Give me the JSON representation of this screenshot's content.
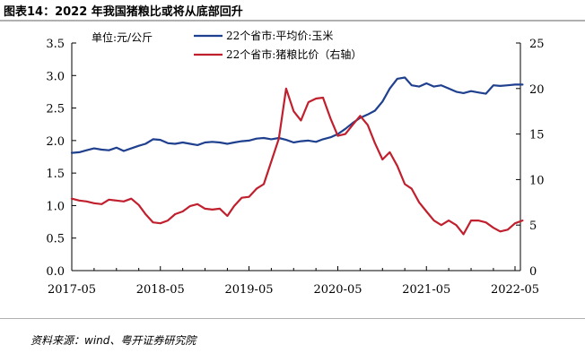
{
  "figure_title": "图表14：2022 年我国猪粮比或将从底部回升",
  "source": "资料来源：wind、粤开证券研究院",
  "chart_data": {
    "type": "line",
    "title": "",
    "unit_label": "单位:元/公斤",
    "x_ticks": [
      "2017-05",
      "2018-05",
      "2019-05",
      "2020-05",
      "2021-05",
      "2022-05"
    ],
    "ylim_left": [
      0,
      3.5
    ],
    "yticks_left": [
      "0.0",
      "0.5",
      "1.0",
      "1.5",
      "2.0",
      "2.5",
      "3.0",
      "3.5"
    ],
    "ylim_right": [
      0,
      25
    ],
    "yticks_right": [
      "0",
      "5",
      "10",
      "15",
      "20",
      "25"
    ],
    "legend_position": "top-center",
    "grid": false,
    "series": [
      {
        "name": "22个省市:平均价:玉米",
        "axis": "left",
        "color": "#1f3f8f",
        "points": [
          [
            "2017-05-01",
            1.81
          ],
          [
            "2017-06-01",
            1.82
          ],
          [
            "2017-07-01",
            1.85
          ],
          [
            "2017-08-01",
            1.88
          ],
          [
            "2017-09-01",
            1.86
          ],
          [
            "2017-10-01",
            1.85
          ],
          [
            "2017-11-01",
            1.89
          ],
          [
            "2017-12-01",
            1.84
          ],
          [
            "2018-01-01",
            1.88
          ],
          [
            "2018-02-01",
            1.92
          ],
          [
            "2018-03-01",
            1.95
          ],
          [
            "2018-04-01",
            2.02
          ],
          [
            "2018-05-01",
            2.01
          ],
          [
            "2018-06-01",
            1.96
          ],
          [
            "2018-07-01",
            1.95
          ],
          [
            "2018-08-01",
            1.97
          ],
          [
            "2018-09-01",
            1.95
          ],
          [
            "2018-10-01",
            1.93
          ],
          [
            "2018-11-01",
            1.97
          ],
          [
            "2018-12-01",
            1.98
          ],
          [
            "2019-01-01",
            1.97
          ],
          [
            "2019-02-01",
            1.95
          ],
          [
            "2019-03-01",
            1.97
          ],
          [
            "2019-04-01",
            1.99
          ],
          [
            "2019-05-01",
            2.0
          ],
          [
            "2019-06-01",
            2.03
          ],
          [
            "2019-07-01",
            2.04
          ],
          [
            "2019-08-01",
            2.02
          ],
          [
            "2019-09-01",
            2.04
          ],
          [
            "2019-10-01",
            2.01
          ],
          [
            "2019-11-01",
            1.97
          ],
          [
            "2019-12-01",
            1.99
          ],
          [
            "2020-01-01",
            2.0
          ],
          [
            "2020-02-01",
            1.98
          ],
          [
            "2020-03-01",
            2.02
          ],
          [
            "2020-04-01",
            2.05
          ],
          [
            "2020-05-01",
            2.1
          ],
          [
            "2020-06-01",
            2.18
          ],
          [
            "2020-07-01",
            2.27
          ],
          [
            "2020-08-01",
            2.35
          ],
          [
            "2020-09-01",
            2.4
          ],
          [
            "2020-10-01",
            2.46
          ],
          [
            "2020-11-01",
            2.6
          ],
          [
            "2020-12-01",
            2.8
          ],
          [
            "2021-01-01",
            2.95
          ],
          [
            "2021-02-01",
            2.97
          ],
          [
            "2021-03-01",
            2.85
          ],
          [
            "2021-04-01",
            2.83
          ],
          [
            "2021-05-01",
            2.88
          ],
          [
            "2021-06-01",
            2.83
          ],
          [
            "2021-07-01",
            2.85
          ],
          [
            "2021-08-01",
            2.8
          ],
          [
            "2021-09-01",
            2.75
          ],
          [
            "2021-10-01",
            2.73
          ],
          [
            "2021-11-01",
            2.76
          ],
          [
            "2021-12-01",
            2.74
          ],
          [
            "2022-01-01",
            2.72
          ],
          [
            "2022-02-01",
            2.85
          ],
          [
            "2022-03-01",
            2.84
          ],
          [
            "2022-04-01",
            2.85
          ],
          [
            "2022-05-01",
            2.86
          ],
          [
            "2022-06-01",
            2.86
          ]
        ]
      },
      {
        "name": "22个省市:猪粮比价（右轴）",
        "axis": "right",
        "color": "#c0202e",
        "points": [
          [
            "2017-05-01",
            7.9
          ],
          [
            "2017-06-01",
            7.7
          ],
          [
            "2017-07-01",
            7.6
          ],
          [
            "2017-08-01",
            7.4
          ],
          [
            "2017-09-01",
            7.3
          ],
          [
            "2017-10-01",
            7.8
          ],
          [
            "2017-11-01",
            7.7
          ],
          [
            "2017-12-01",
            7.6
          ],
          [
            "2018-01-01",
            7.9
          ],
          [
            "2018-02-01",
            7.2
          ],
          [
            "2018-03-01",
            6.2
          ],
          [
            "2018-04-01",
            5.3
          ],
          [
            "2018-05-01",
            5.2
          ],
          [
            "2018-06-01",
            5.5
          ],
          [
            "2018-07-01",
            6.2
          ],
          [
            "2018-08-01",
            6.5
          ],
          [
            "2018-09-01",
            7.1
          ],
          [
            "2018-10-01",
            7.3
          ],
          [
            "2018-11-01",
            6.8
          ],
          [
            "2018-12-01",
            6.7
          ],
          [
            "2019-01-01",
            6.8
          ],
          [
            "2019-02-01",
            6.0
          ],
          [
            "2019-03-01",
            7.1
          ],
          [
            "2019-04-01",
            8.0
          ],
          [
            "2019-05-01",
            8.1
          ],
          [
            "2019-06-01",
            9.0
          ],
          [
            "2019-07-01",
            9.5
          ],
          [
            "2019-08-01",
            12.0
          ],
          [
            "2019-09-01",
            14.5
          ],
          [
            "2019-10-01",
            20.0
          ],
          [
            "2019-11-01",
            17.5
          ],
          [
            "2019-12-01",
            16.5
          ],
          [
            "2020-01-01",
            18.5
          ],
          [
            "2020-02-01",
            18.9
          ],
          [
            "2020-03-01",
            19.0
          ],
          [
            "2020-04-01",
            16.7
          ],
          [
            "2020-05-01",
            14.8
          ],
          [
            "2020-06-01",
            15.0
          ],
          [
            "2020-07-01",
            16.0
          ],
          [
            "2020-08-01",
            17.0
          ],
          [
            "2020-09-01",
            16.0
          ],
          [
            "2020-10-01",
            14.0
          ],
          [
            "2020-11-01",
            12.2
          ],
          [
            "2020-12-01",
            13.0
          ],
          [
            "2021-01-01",
            11.5
          ],
          [
            "2021-02-01",
            9.5
          ],
          [
            "2021-03-01",
            9.0
          ],
          [
            "2021-04-01",
            7.5
          ],
          [
            "2021-05-01",
            6.5
          ],
          [
            "2021-06-01",
            5.5
          ],
          [
            "2021-07-01",
            5.0
          ],
          [
            "2021-08-01",
            5.5
          ],
          [
            "2021-09-01",
            5.0
          ],
          [
            "2021-10-01",
            4.0
          ],
          [
            "2021-11-01",
            5.5
          ],
          [
            "2021-12-01",
            5.5
          ],
          [
            "2022-01-01",
            5.3
          ],
          [
            "2022-02-01",
            4.7
          ],
          [
            "2022-03-01",
            4.3
          ],
          [
            "2022-04-01",
            4.5
          ],
          [
            "2022-05-01",
            5.2
          ],
          [
            "2022-06-01",
            5.5
          ]
        ]
      }
    ]
  }
}
